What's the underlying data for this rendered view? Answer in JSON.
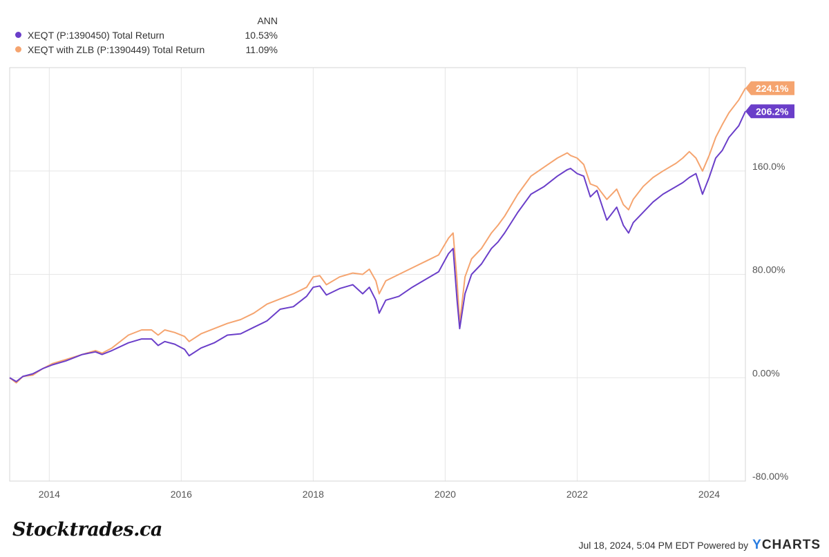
{
  "legend": {
    "header": "ANN",
    "items": [
      {
        "name": "XEQT (P:1390450) Total Return",
        "value": "10.53%",
        "color": "#6a3ec9"
      },
      {
        "name": "XEQT with ZLB (P:1390449) Total Return",
        "value": "11.09%",
        "color": "#f5a46f"
      }
    ]
  },
  "chart_data": {
    "type": "line",
    "title": "",
    "xlabel": "",
    "ylabel": "",
    "xlim": [
      2013.4,
      2024.55
    ],
    "ylim": [
      -80,
      240
    ],
    "x_ticks": [
      "2014",
      "2016",
      "2018",
      "2020",
      "2022",
      "2024"
    ],
    "y_ticks": [
      "160.0%",
      "80.00%",
      "0.00%",
      "-80.00%"
    ],
    "series": [
      {
        "name": "XEQT (P:1390450) Total Return",
        "color": "#6a3ec9",
        "end_label": "206.2%",
        "x": [
          2013.4,
          2013.5,
          2013.6,
          2013.75,
          2013.9,
          2014.05,
          2014.25,
          2014.5,
          2014.7,
          2014.8,
          2014.95,
          2015.2,
          2015.4,
          2015.55,
          2015.65,
          2015.75,
          2015.9,
          2016.05,
          2016.12,
          2016.3,
          2016.5,
          2016.7,
          2016.9,
          2017.1,
          2017.3,
          2017.5,
          2017.7,
          2017.9,
          2018.0,
          2018.1,
          2018.2,
          2018.4,
          2018.6,
          2018.75,
          2018.85,
          2018.95,
          2019.0,
          2019.1,
          2019.3,
          2019.5,
          2019.7,
          2019.9,
          2020.05,
          2020.12,
          2020.18,
          2020.22,
          2020.3,
          2020.4,
          2020.55,
          2020.7,
          2020.8,
          2020.9,
          2021.1,
          2021.3,
          2021.5,
          2021.7,
          2021.85,
          2021.9,
          2022.0,
          2022.1,
          2022.2,
          2022.3,
          2022.45,
          2022.6,
          2022.7,
          2022.78,
          2022.85,
          2023.0,
          2023.15,
          2023.3,
          2023.5,
          2023.6,
          2023.7,
          2023.8,
          2023.9,
          2024.0,
          2024.1,
          2024.2,
          2024.3,
          2024.45,
          2024.55
        ],
        "values": [
          0,
          -3,
          1,
          3,
          7,
          10,
          13,
          18,
          20,
          18,
          21,
          27,
          30,
          30,
          25,
          28,
          26,
          22,
          17,
          23,
          27,
          33,
          34,
          39,
          44,
          53,
          55,
          63,
          70,
          71,
          64,
          69,
          72,
          65,
          70,
          60,
          50,
          60,
          63,
          70,
          76,
          82,
          96,
          100,
          60,
          38,
          65,
          80,
          88,
          100,
          105,
          112,
          128,
          142,
          148,
          156,
          161,
          162,
          158,
          156,
          140,
          145,
          122,
          132,
          118,
          112,
          120,
          128,
          136,
          142,
          148,
          151,
          155,
          158,
          142,
          155,
          170,
          176,
          186,
          195,
          206.2
        ]
      },
      {
        "name": "XEQT with ZLB (P:1390449) Total Return",
        "color": "#f5a46f",
        "end_label": "224.1%",
        "x": [
          2013.4,
          2013.5,
          2013.6,
          2013.75,
          2013.9,
          2014.05,
          2014.25,
          2014.5,
          2014.7,
          2014.8,
          2014.95,
          2015.2,
          2015.4,
          2015.55,
          2015.65,
          2015.75,
          2015.9,
          2016.05,
          2016.12,
          2016.3,
          2016.5,
          2016.7,
          2016.9,
          2017.1,
          2017.3,
          2017.5,
          2017.7,
          2017.9,
          2018.0,
          2018.1,
          2018.2,
          2018.4,
          2018.6,
          2018.75,
          2018.85,
          2018.95,
          2019.0,
          2019.1,
          2019.3,
          2019.5,
          2019.7,
          2019.9,
          2020.05,
          2020.12,
          2020.18,
          2020.22,
          2020.3,
          2020.4,
          2020.55,
          2020.7,
          2020.8,
          2020.9,
          2021.1,
          2021.3,
          2021.5,
          2021.7,
          2021.85,
          2021.9,
          2022.0,
          2022.1,
          2022.2,
          2022.3,
          2022.45,
          2022.6,
          2022.7,
          2022.78,
          2022.85,
          2023.0,
          2023.15,
          2023.3,
          2023.5,
          2023.6,
          2023.7,
          2023.8,
          2023.9,
          2024.0,
          2024.1,
          2024.2,
          2024.3,
          2024.45,
          2024.55
        ],
        "values": [
          0,
          -4,
          1,
          2,
          7,
          11,
          14,
          18,
          21,
          19,
          23,
          33,
          37,
          37,
          33,
          37,
          35,
          32,
          28,
          34,
          38,
          42,
          45,
          50,
          57,
          61,
          65,
          70,
          78,
          79,
          72,
          78,
          81,
          80,
          84,
          75,
          65,
          75,
          80,
          85,
          90,
          95,
          108,
          112,
          75,
          42,
          78,
          92,
          100,
          112,
          118,
          125,
          142,
          156,
          163,
          170,
          174,
          172,
          170,
          165,
          150,
          148,
          138,
          146,
          134,
          130,
          138,
          148,
          155,
          160,
          166,
          170,
          175,
          170,
          160,
          172,
          186,
          196,
          205,
          215,
          224.1
        ]
      }
    ]
  },
  "footer": {
    "brand": "Stocktrades.ca",
    "timestamp": "Jul 18, 2024, 5:04 PM EDT Powered by",
    "logo_y": "Y",
    "logo_rest": "CHARTS"
  }
}
